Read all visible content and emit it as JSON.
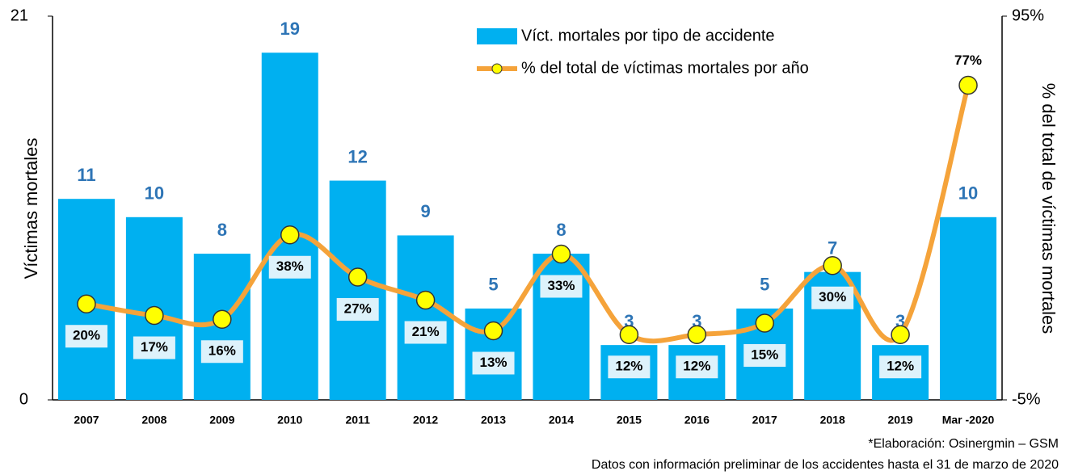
{
  "chart_data": {
    "type": "bar",
    "categories": [
      "2007",
      "2008",
      "2009",
      "2010",
      "2011",
      "2012",
      "2013",
      "2014",
      "2015",
      "2016",
      "2017",
      "2018",
      "2019",
      "Mar -2020"
    ],
    "series": [
      {
        "name": "Víct. mortales por tipo de accidente",
        "type": "bar",
        "color": "#00b0f0",
        "values": [
          11,
          10,
          8,
          19,
          12,
          9,
          5,
          8,
          3,
          3,
          5,
          7,
          3,
          10
        ]
      },
      {
        "name": "% del total de víctimas mortales por año",
        "type": "line",
        "axis": "y2",
        "color": "#f5a33a",
        "marker_color": "#ffff00",
        "values": [
          20,
          17,
          16,
          38,
          27,
          21,
          13,
          33,
          12,
          12,
          15,
          30,
          12,
          77
        ],
        "value_labels": [
          "20%",
          "17%",
          "16%",
          "38%",
          "27%",
          "21%",
          "13%",
          "33%",
          "12%",
          "12%",
          "15%",
          "30%",
          "12%",
          "77%"
        ]
      }
    ],
    "ylabel": "Víctimas mortales",
    "y2label": "% del total de víctimas mortales",
    "ylim": [
      0,
      21
    ],
    "yticks": [
      0,
      21
    ],
    "y2lim": [
      -5,
      95
    ],
    "y2ticks": [
      {
        "value": -5,
        "label": "-5%"
      },
      {
        "value": 95,
        "label": "95%"
      }
    ],
    "notes": [
      "*Elaboración: Osinergmin – GSM",
      "Datos con información preliminar de los accidentes hasta el 31 de marzo de 2020"
    ]
  }
}
